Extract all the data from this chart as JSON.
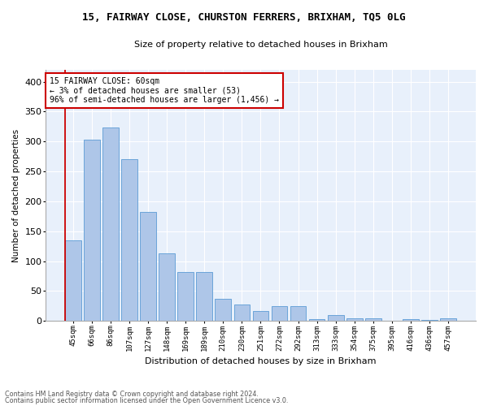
{
  "title1": "15, FAIRWAY CLOSE, CHURSTON FERRERS, BRIXHAM, TQ5 0LG",
  "title2": "Size of property relative to detached houses in Brixham",
  "xlabel": "Distribution of detached houses by size in Brixham",
  "ylabel": "Number of detached properties",
  "categories": [
    "45sqm",
    "66sqm",
    "86sqm",
    "107sqm",
    "127sqm",
    "148sqm",
    "169sqm",
    "189sqm",
    "210sqm",
    "230sqm",
    "251sqm",
    "272sqm",
    "292sqm",
    "313sqm",
    "333sqm",
    "354sqm",
    "375sqm",
    "395sqm",
    "416sqm",
    "436sqm",
    "457sqm"
  ],
  "values": [
    135,
    303,
    323,
    270,
    182,
    113,
    82,
    82,
    37,
    27,
    17,
    25,
    25,
    3,
    10,
    4,
    5,
    1,
    3,
    2,
    5
  ],
  "bar_color": "#aec6e8",
  "bar_edge_color": "#5b9bd5",
  "background_color": "#e8f0fb",
  "annotation_text": "15 FAIRWAY CLOSE: 60sqm\n← 3% of detached houses are smaller (53)\n96% of semi-detached houses are larger (1,456) →",
  "annotation_box_color": "#ffffff",
  "annotation_box_edge_color": "#cc0000",
  "vline_color": "#cc0000",
  "footer_line1": "Contains HM Land Registry data © Crown copyright and database right 2024.",
  "footer_line2": "Contains public sector information licensed under the Open Government Licence v3.0.",
  "ylim": [
    0,
    420
  ],
  "yticks": [
    0,
    50,
    100,
    150,
    200,
    250,
    300,
    350,
    400
  ]
}
